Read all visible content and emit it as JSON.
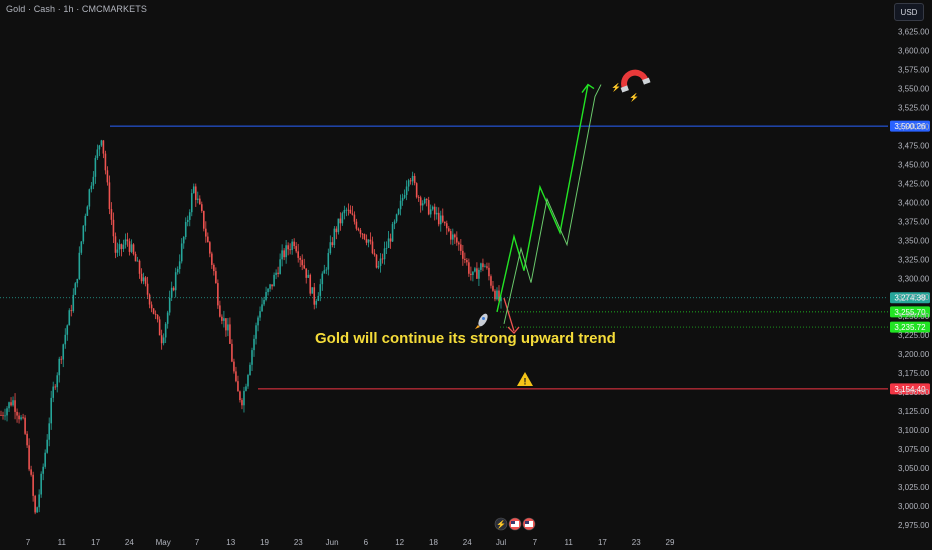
{
  "header": {
    "title": "Gold · Cash · 1h · CMCMARKETS",
    "currency_button": "USD"
  },
  "annotation": "Gold will continue its strong upward trend",
  "icons": {
    "rocket": "rocket-icon",
    "magnet": "magnet-icon",
    "warning": "warning-icon",
    "events": [
      "lightning-icon",
      "us-flag-icon",
      "us-flag-icon"
    ]
  },
  "colors": {
    "background": "#0f0f0f",
    "up_candle": "#26a69a",
    "down_candle": "#ef5350",
    "resistance": "#2962ff",
    "support": "#f23645",
    "target": "#22e324",
    "annotation": "#f5dc3a"
  },
  "chart_data": {
    "type": "candlestick",
    "symbol": "Gold",
    "timeframe": "1h",
    "y_axis": {
      "ticks": [
        2975,
        3000,
        3025,
        3050,
        3075,
        3100,
        3125,
        3150,
        3175,
        3200,
        3225,
        3250,
        3275,
        3300,
        3325,
        3350,
        3375,
        3400,
        3425,
        3450,
        3475,
        3500,
        3525,
        3550,
        3575,
        3600,
        3625
      ],
      "tick_labels": [
        "2,975.00",
        "3,000.00",
        "3,025.00",
        "3,050.00",
        "3,075.00",
        "3,100.00",
        "3,125.00",
        "3,150.00",
        "3,175.00",
        "3,200.00",
        "3,225.00",
        "3,250.00",
        "3,275.00",
        "3,300.00",
        "3,325.00",
        "3,350.00",
        "3,375.00",
        "3,400.00",
        "3,425.00",
        "3,450.00",
        "3,475.00",
        "3,500.00",
        "3,525.00",
        "3,550.00",
        "3,575.00",
        "3,600.00",
        "3,625.00"
      ],
      "range": [
        2962,
        3640
      ]
    },
    "x_axis": {
      "tick_labels": [
        "7",
        "11",
        "17",
        "24",
        "May",
        "7",
        "13",
        "19",
        "23",
        "Jun",
        "6",
        "12",
        "18",
        "24",
        "Jul",
        "7",
        "11",
        "17",
        "23",
        "29"
      ]
    },
    "horizontal_levels": [
      {
        "price": 3500.26,
        "label": "3,500.26",
        "color": "#2962ff"
      },
      {
        "price": 3274.38,
        "label": "3,274.38",
        "color": "#26a69a"
      },
      {
        "price": 3255.7,
        "label": "3,255.70",
        "color": "#22e324"
      },
      {
        "price": 3235.72,
        "label": "3,235.72",
        "color": "#22e324"
      },
      {
        "price": 3154.4,
        "label": "3,154.40",
        "color": "#f23645"
      }
    ],
    "price_path": [
      [
        0,
        3120
      ],
      [
        0.02,
        3140
      ],
      [
        0.04,
        3105
      ],
      [
        0.05,
        3050
      ],
      [
        0.06,
        2985
      ],
      [
        0.075,
        3060
      ],
      [
        0.09,
        3150
      ],
      [
        0.11,
        3220
      ],
      [
        0.13,
        3290
      ],
      [
        0.145,
        3380
      ],
      [
        0.16,
        3440
      ],
      [
        0.175,
        3490
      ],
      [
        0.185,
        3420
      ],
      [
        0.2,
        3330
      ],
      [
        0.22,
        3350
      ],
      [
        0.24,
        3310
      ],
      [
        0.26,
        3270
      ],
      [
        0.28,
        3220
      ],
      [
        0.3,
        3290
      ],
      [
        0.32,
        3360
      ],
      [
        0.335,
        3420
      ],
      [
        0.35,
        3380
      ],
      [
        0.37,
        3310
      ],
      [
        0.38,
        3260
      ],
      [
        0.395,
        3230
      ],
      [
        0.41,
        3150
      ],
      [
        0.42,
        3140
      ],
      [
        0.435,
        3200
      ],
      [
        0.45,
        3260
      ],
      [
        0.47,
        3290
      ],
      [
        0.49,
        3330
      ],
      [
        0.51,
        3350
      ],
      [
        0.53,
        3310
      ],
      [
        0.545,
        3270
      ],
      [
        0.56,
        3300
      ],
      [
        0.58,
        3360
      ],
      [
        0.6,
        3390
      ],
      [
        0.62,
        3370
      ],
      [
        0.64,
        3350
      ],
      [
        0.655,
        3310
      ],
      [
        0.67,
        3340
      ],
      [
        0.69,
        3380
      ],
      [
        0.71,
        3440
      ],
      [
        0.725,
        3410
      ],
      [
        0.74,
        3395
      ],
      [
        0.76,
        3380
      ],
      [
        0.78,
        3360
      ],
      [
        0.8,
        3340
      ],
      [
        0.82,
        3300
      ],
      [
        0.84,
        3320
      ],
      [
        0.86,
        3280
      ],
      [
        0.87,
        3265
      ]
    ],
    "projection": {
      "down_to": 3235.72,
      "up_path": [
        3255.7,
        3355,
        3310,
        3420,
        3360,
        3555
      ]
    }
  }
}
